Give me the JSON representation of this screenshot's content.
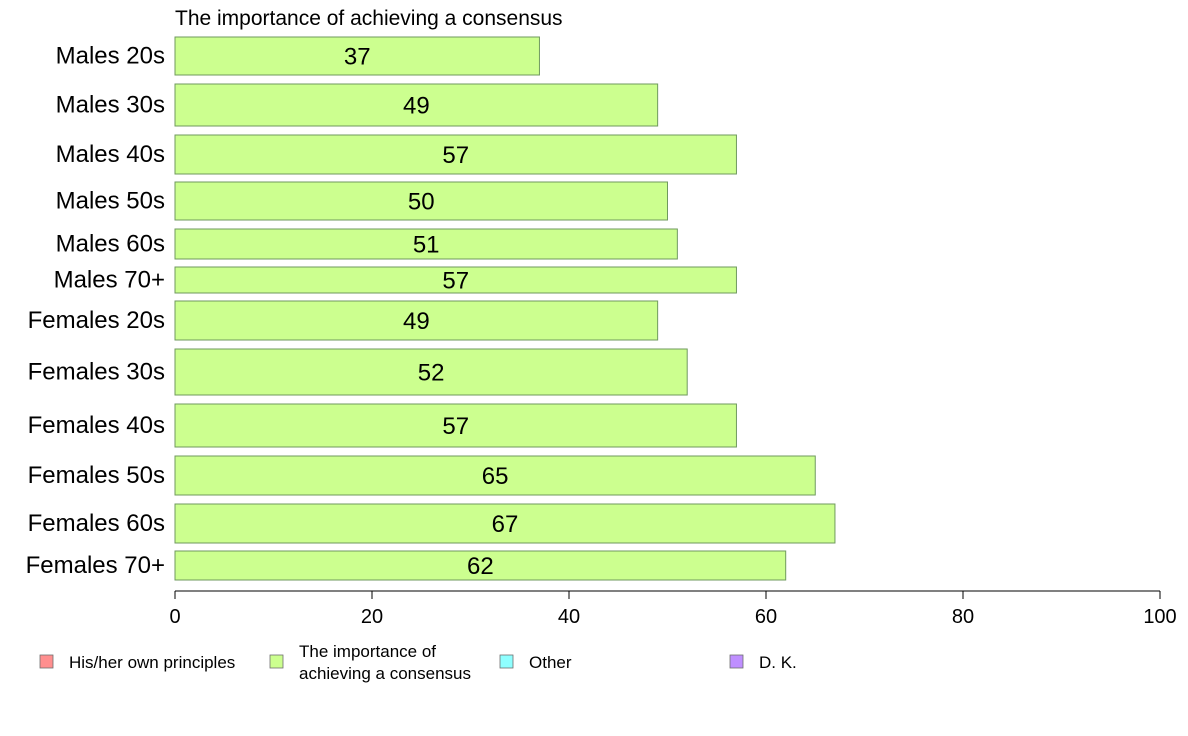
{
  "chart_data": {
    "type": "bar",
    "orientation": "horizontal",
    "title": "The importance of achieving a consensus",
    "categories": [
      "Males 20s",
      "Males 30s",
      "Males 40s",
      "Males 50s",
      "Males 60s",
      "Males 70+",
      "Females 20s",
      "Females 30s",
      "Females 40s",
      "Females 50s",
      "Females 60s",
      "Females 70+"
    ],
    "series": [
      {
        "name": "The importance of achieving a consensus",
        "values": [
          37,
          49,
          57,
          50,
          51,
          57,
          49,
          52,
          57,
          65,
          67,
          62
        ],
        "labels": [
          "37",
          "49",
          "57",
          "50",
          "51",
          "57",
          "49",
          "52",
          "57",
          "65",
          "67",
          "62"
        ]
      }
    ],
    "xlim": [
      0,
      100
    ],
    "xticks": [
      "0",
      "20",
      "40",
      "60",
      "80",
      "100"
    ],
    "grid": false,
    "legend_placement": "bottom",
    "legend": [
      {
        "lines": [
          "His/her own principles"
        ],
        "color": "#ff8f8f"
      },
      {
        "lines": [
          "The importance of",
          "achieving a consensus"
        ],
        "color": "#ccff8f"
      },
      {
        "lines": [
          "Other"
        ],
        "color": "#8fffff"
      },
      {
        "lines": [
          "D. K."
        ],
        "color": "#bf8fff"
      }
    ],
    "bar_color": "#ccff8f",
    "bar_stroke": "#6f9a5e"
  }
}
